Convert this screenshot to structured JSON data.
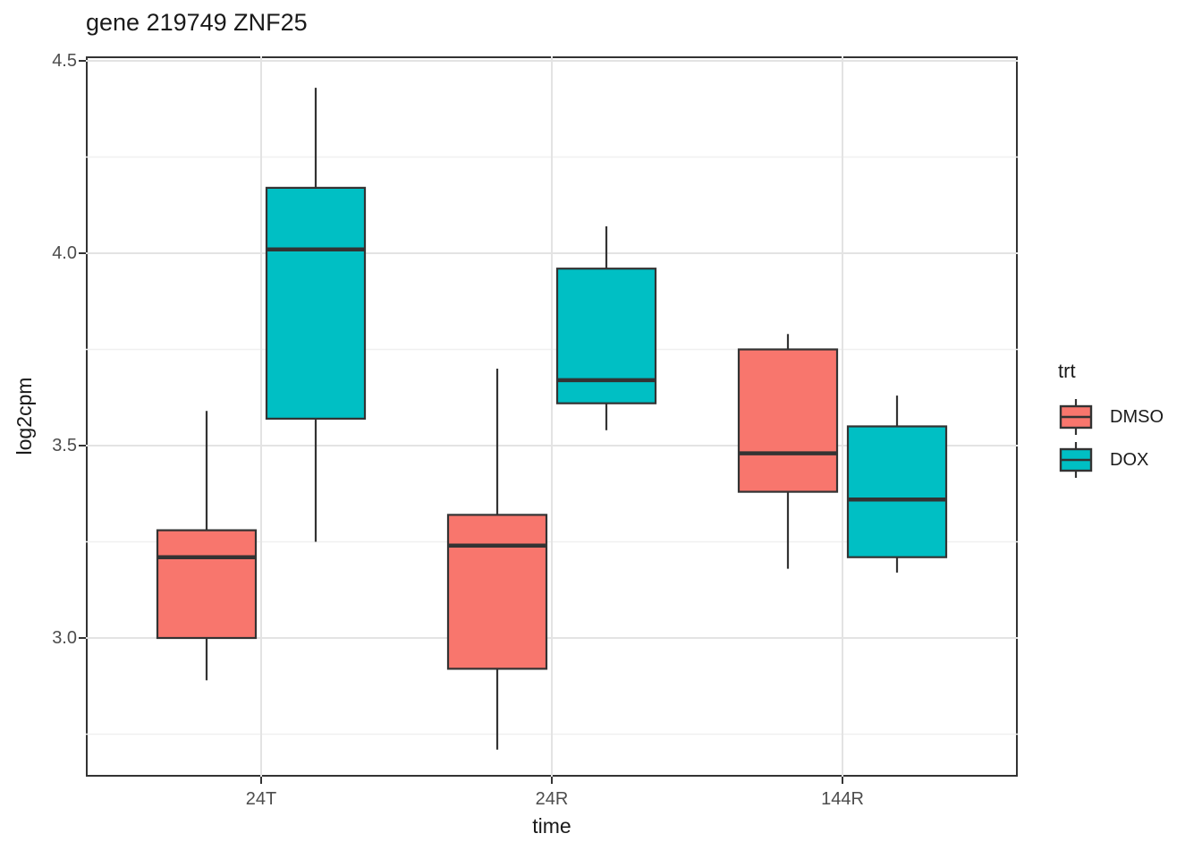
{
  "title": "gene 219749 ZNF25",
  "y_axis": {
    "title": "log2cpm",
    "ticks": [
      "4.5",
      "4.0",
      "3.5",
      "3.0"
    ]
  },
  "x_axis": {
    "title": "time",
    "ticks": [
      "24T",
      "24R",
      "144R"
    ]
  },
  "legend": {
    "title": "trt",
    "entries": [
      {
        "label": "DMSO",
        "color": "#F8766D"
      },
      {
        "label": "DOX",
        "color": "#00BFC4"
      }
    ]
  },
  "style": {
    "box_border": "#333333",
    "grid_major": "#e3e3e3",
    "grid_minor": "#f0f0f0",
    "panel_border": "#333333",
    "axis_text": "#4d4d4d",
    "title_color": "#1a1a1a"
  },
  "chart_data": {
    "type": "boxplot",
    "title": "gene 219749 ZNF25",
    "xlabel": "time",
    "ylabel": "log2cpm",
    "categories": [
      "24T",
      "24R",
      "144R"
    ],
    "ylim": [
      2.64,
      4.51
    ],
    "y_major_ticks": [
      4.5,
      4.0,
      3.5,
      3.0
    ],
    "y_minor_gridlines": [
      4.25,
      3.75,
      3.25,
      2.75
    ],
    "grid": "major horizontal+vertical, minor horizontal",
    "legend_title": "trt",
    "legend_position": "right",
    "series": [
      {
        "name": "DMSO",
        "color": "#F8766D",
        "boxes": [
          {
            "category": "24T",
            "whisker_low": 2.89,
            "q1": 3.0,
            "median": 3.21,
            "q3": 3.28,
            "whisker_high": 3.59
          },
          {
            "category": "24R",
            "whisker_low": 2.71,
            "q1": 2.92,
            "median": 3.24,
            "q3": 3.32,
            "whisker_high": 3.7
          },
          {
            "category": "144R",
            "whisker_low": 3.18,
            "q1": 3.38,
            "median": 3.48,
            "q3": 3.75,
            "whisker_high": 3.79
          }
        ]
      },
      {
        "name": "DOX",
        "color": "#00BFC4",
        "boxes": [
          {
            "category": "24T",
            "whisker_low": 3.25,
            "q1": 3.57,
            "median": 4.01,
            "q3": 4.17,
            "whisker_high": 4.43
          },
          {
            "category": "24R",
            "whisker_low": 3.54,
            "q1": 3.61,
            "median": 3.67,
            "q3": 3.96,
            "whisker_high": 4.07
          },
          {
            "category": "144R",
            "whisker_low": 3.17,
            "q1": 3.21,
            "median": 3.36,
            "q3": 3.55,
            "whisker_high": 3.63
          }
        ]
      }
    ]
  }
}
